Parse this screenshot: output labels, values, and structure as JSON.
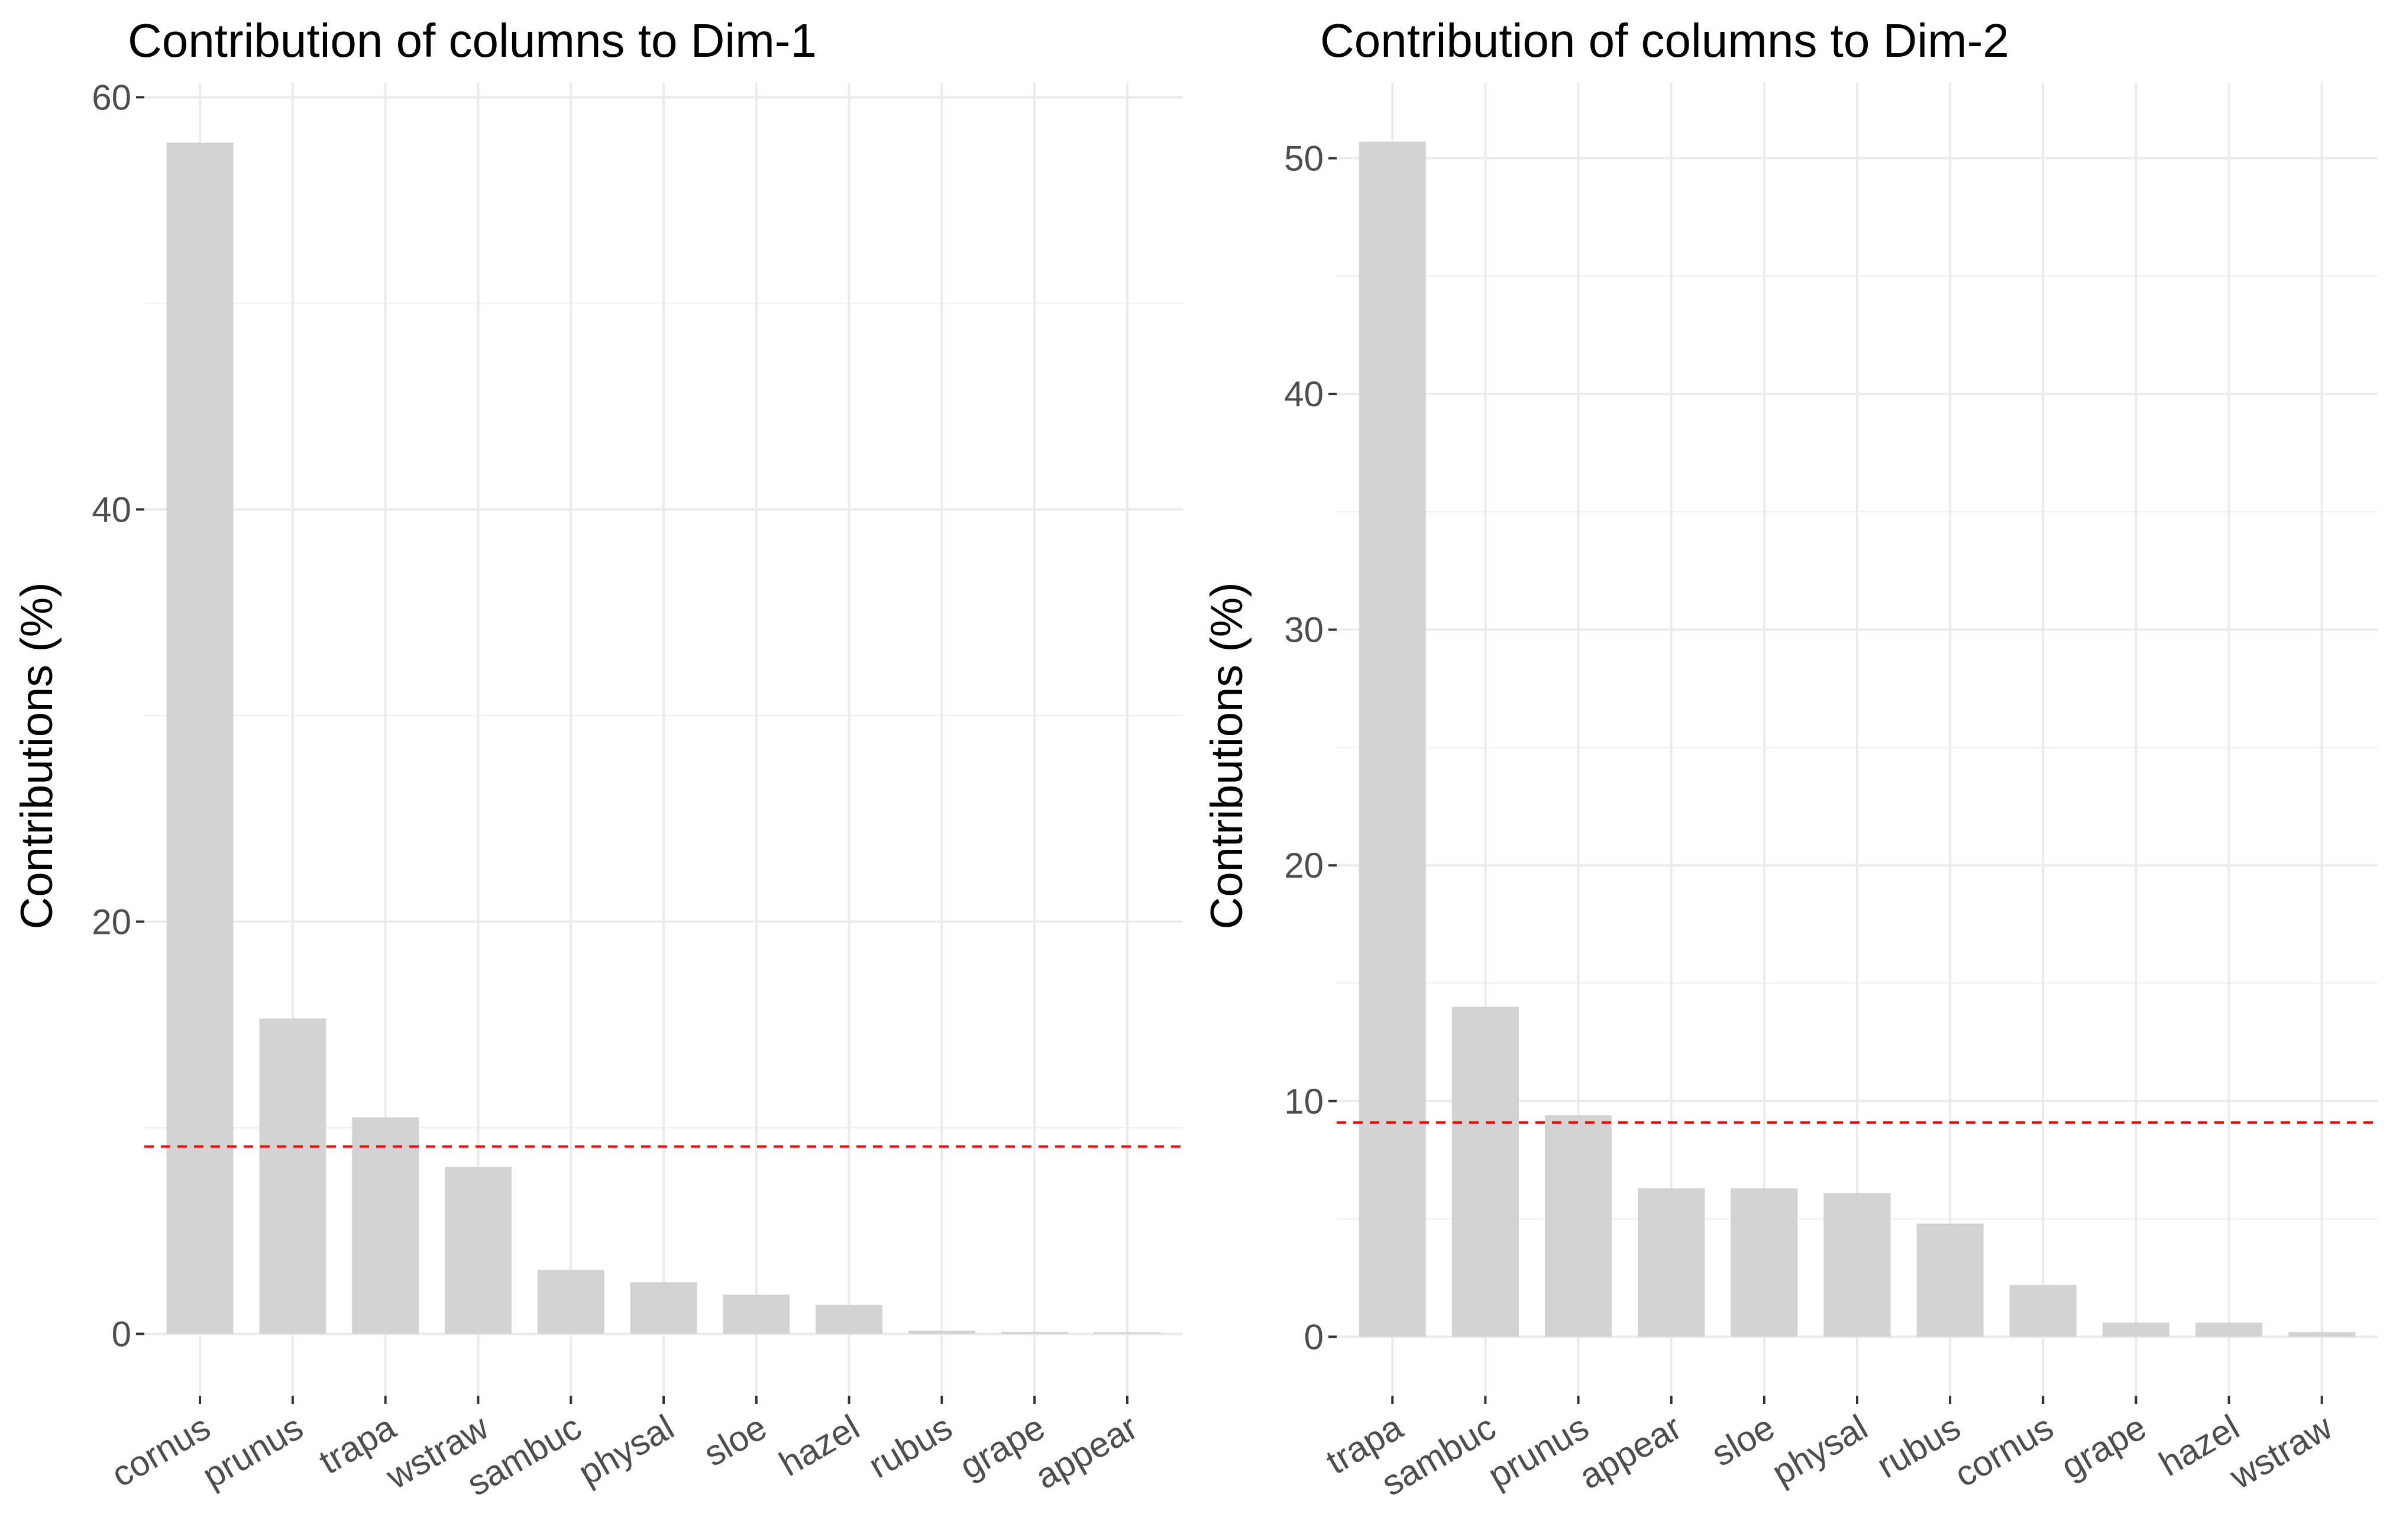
{
  "chart_data": [
    {
      "type": "bar",
      "title": "Contribution of columns to Dim-1",
      "xlabel": "",
      "ylabel": "Contributions (%)",
      "categories": [
        "cornus",
        "prunus",
        "trapa",
        "wstraw",
        "sambuc",
        "physal",
        "sloe",
        "hazel",
        "rubus",
        "grape",
        "appear"
      ],
      "values": [
        57.8,
        15.3,
        10.5,
        8.1,
        3.1,
        2.5,
        1.9,
        1.4,
        0.15,
        0.1,
        0.08
      ],
      "reference_line": 9.09,
      "yticks": [
        0,
        20,
        40,
        60
      ],
      "ylim": [
        -3.0,
        60.7
      ],
      "grid": true,
      "colors": {
        "bar": "#d3d3d3",
        "reference": "#ff0000"
      }
    },
    {
      "type": "bar",
      "title": "Contribution of columns to Dim-2",
      "xlabel": "",
      "ylabel": "Contributions (%)",
      "categories": [
        "trapa",
        "sambuc",
        "prunus",
        "appear",
        "sloe",
        "physal",
        "rubus",
        "cornus",
        "grape",
        "hazel",
        "wstraw"
      ],
      "values": [
        50.7,
        14.0,
        9.4,
        6.3,
        6.3,
        6.1,
        4.8,
        2.2,
        0.6,
        0.6,
        0.2
      ],
      "reference_line": 9.09,
      "yticks": [
        0,
        10,
        20,
        30,
        40,
        50
      ],
      "ylim": [
        -2.5,
        53.2
      ],
      "grid": true,
      "colors": {
        "bar": "#d3d3d3",
        "reference": "#ff0000"
      }
    }
  ]
}
